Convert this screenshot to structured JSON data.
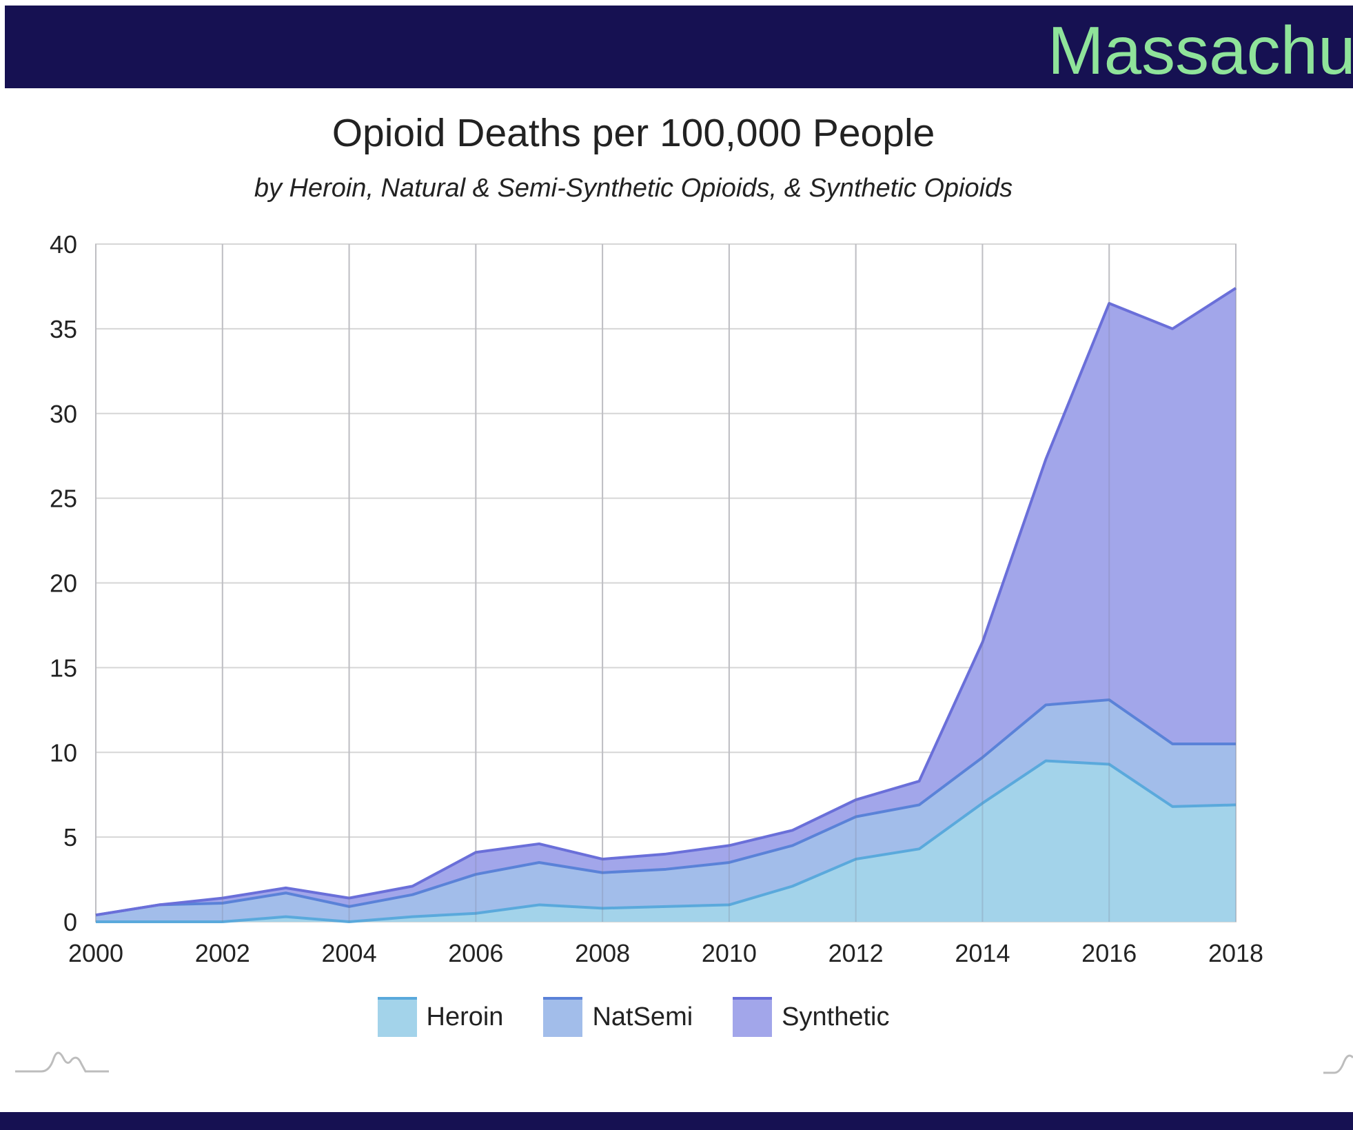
{
  "header": {
    "title": "Massachu"
  },
  "colors": {
    "header_bg": "#161152",
    "header_text": "#8fe39a",
    "heroin": "#a3d3ea",
    "heroin_line": "#5aa9dc",
    "natsemi": "#a2bdea",
    "natsemi_line": "#5a82d8",
    "synthetic": "#a2a6ea",
    "synthetic_line": "#6a6fd9"
  },
  "chart_data": {
    "type": "area",
    "stacked": true,
    "title": "Opioid Deaths per 100,000 People",
    "subtitle": "by Heroin, Natural & Semi-Synthetic Opioids, & Synthetic Opioids",
    "xlabel": "",
    "ylabel": "",
    "x": [
      2000,
      2001,
      2002,
      2003,
      2004,
      2005,
      2006,
      2007,
      2008,
      2009,
      2010,
      2011,
      2012,
      2013,
      2014,
      2015,
      2016,
      2017,
      2018
    ],
    "xticks": [
      "2000",
      "2002",
      "2004",
      "2006",
      "2008",
      "2010",
      "2012",
      "2014",
      "2016",
      "2018"
    ],
    "yticks": [
      "0",
      "5",
      "10",
      "15",
      "20",
      "25",
      "30",
      "35",
      "40"
    ],
    "xlim": [
      2000,
      2018
    ],
    "ylim": [
      0,
      40
    ],
    "grid": true,
    "legend_position": "bottom",
    "series": [
      {
        "name": "Heroin",
        "values": [
          0.0,
          0.0,
          0.0,
          0.3,
          0.0,
          0.3,
          0.5,
          1.0,
          0.8,
          0.9,
          1.0,
          2.1,
          3.7,
          4.3,
          7.0,
          9.5,
          9.3,
          6.8,
          6.9
        ]
      },
      {
        "name": "NatSemi",
        "values": [
          0.4,
          1.0,
          1.1,
          1.4,
          0.9,
          1.3,
          2.3,
          2.5,
          2.1,
          2.2,
          2.5,
          2.4,
          2.5,
          2.6,
          2.7,
          3.3,
          3.8,
          3.7,
          3.6
        ]
      },
      {
        "name": "Synthetic",
        "values": [
          0.0,
          0.0,
          0.3,
          0.3,
          0.5,
          0.5,
          1.3,
          1.1,
          0.8,
          0.9,
          1.0,
          0.9,
          1.0,
          1.4,
          6.8,
          14.5,
          23.4,
          24.5,
          26.9
        ]
      }
    ]
  }
}
